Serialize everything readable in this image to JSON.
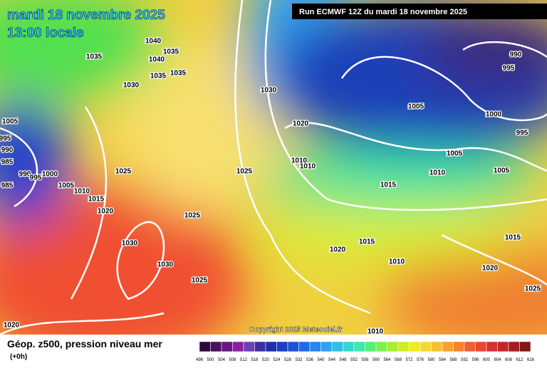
{
  "header": {
    "date": "mardi 18 novembre 2025",
    "time": "13:00 locale",
    "run": "Run ECMWF 12Z du mardi 18 novembre 2025"
  },
  "copyright": "Copyright 2025 Meteociel.fr",
  "footer": {
    "title": "Géop. z500, pression niveau mer",
    "lead": "(+0h)"
  },
  "isobar_labels": [
    "1035",
    "1040",
    "1035",
    "1040",
    "1035",
    "1035",
    "1030",
    "1030",
    "1020",
    "1005",
    "1000",
    "995",
    "990",
    "995",
    "1005",
    "995",
    "990",
    "985",
    "985",
    "990",
    "995",
    "1000",
    "1005",
    "1010",
    "1015",
    "1020",
    "1025",
    "1025",
    "1025",
    "1010",
    "1010",
    "1005",
    "1010",
    "1005",
    "1015",
    "1015",
    "1015",
    "1020",
    "1010",
    "1010",
    "1020",
    "1025",
    "1030",
    "1030",
    "1025",
    "1020"
  ],
  "scale": {
    "labels": [
      "496",
      "500",
      "504",
      "508",
      "512",
      "516",
      "520",
      "524",
      "528",
      "532",
      "536",
      "540",
      "544",
      "548",
      "552",
      "556",
      "560",
      "564",
      "568",
      "572",
      "576",
      "580",
      "584",
      "588",
      "592",
      "596",
      "600",
      "604",
      "608",
      "612",
      "616"
    ],
    "colors": [
      "#2a0a3a",
      "#4b0f5e",
      "#6a1580",
      "#8a1ea0",
      "#6f3fb5",
      "#3b2fa0",
      "#1f2fa8",
      "#1a3fc0",
      "#1a55d8",
      "#1f6ae8",
      "#2a85f0",
      "#30a0f0",
      "#2ec0e8",
      "#33d8d0",
      "#3de8a8",
      "#55ef7a",
      "#7cf050",
      "#a8ee30",
      "#d0ee20",
      "#f0ea20",
      "#f8d830",
      "#f8c030",
      "#f8a030",
      "#f88030",
      "#f06030",
      "#e84830",
      "#d83030",
      "#c02828",
      "#a02020",
      "#801818"
    ]
  }
}
